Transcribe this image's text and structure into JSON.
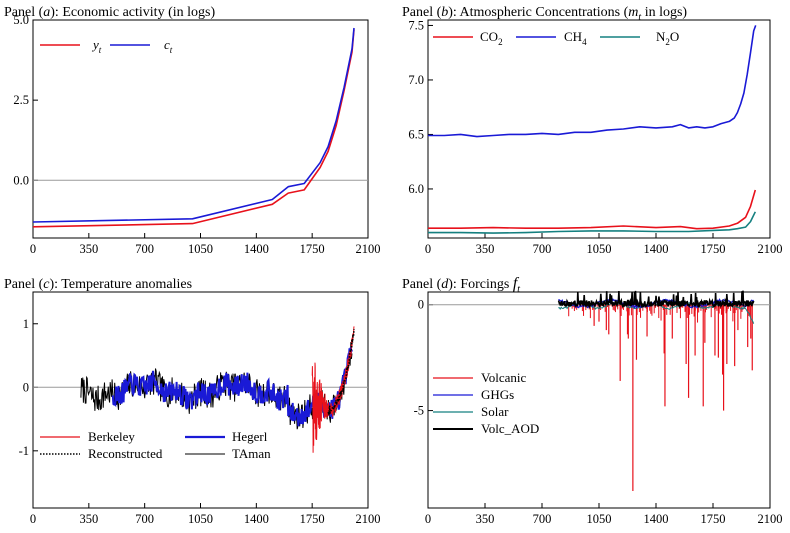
{
  "panels": {
    "a": {
      "prefix": "Panel (",
      "letter": "a",
      "rest": "): Economic activity (in logs)"
    },
    "b": {
      "prefix": "Panel (",
      "letter": "b",
      "rest": "): Atmospheric Concentrations (",
      "m": "m",
      "t": "t",
      "tail": " in logs)"
    },
    "c": {
      "prefix": "Panel (",
      "letter": "c",
      "rest": "): Temperature anomalies"
    },
    "d": {
      "prefix": "Panel (",
      "letter": "d",
      "rest": "): Forcings ",
      "f": "f",
      "t": "t"
    }
  },
  "chart_data": [
    {
      "id": "a",
      "type": "line",
      "title": "Panel (a): Economic activity (in logs)",
      "xlim": [
        0,
        2100
      ],
      "ylim": [
        -1.8,
        5.0
      ],
      "x_ticks": [
        0,
        350,
        700,
        1050,
        1400,
        1750,
        2100
      ],
      "y_ticks": [
        5.0,
        2.5,
        0.0
      ],
      "y_tick_labels": [
        "5.0",
        "2.5",
        "0.0"
      ],
      "reference_line": 0,
      "legend_position": "top-left",
      "series": [
        {
          "name": "y_t",
          "color": "#e8111b",
          "x": [
            0,
            1000,
            1500,
            1600,
            1700,
            1800,
            1850,
            1900,
            1950,
            2000,
            2012
          ],
          "y": [
            -1.45,
            -1.35,
            -0.75,
            -0.4,
            -0.3,
            0.4,
            0.9,
            1.7,
            2.8,
            4.0,
            4.7
          ]
        },
        {
          "name": "c_t",
          "color": "#1a1ad6",
          "x": [
            0,
            1000,
            1500,
            1600,
            1700,
            1800,
            1850,
            1900,
            1950,
            2000,
            2012
          ],
          "y": [
            -1.3,
            -1.2,
            -0.6,
            -0.2,
            -0.1,
            0.55,
            1.05,
            1.85,
            2.9,
            4.1,
            4.75
          ]
        }
      ]
    },
    {
      "id": "b",
      "type": "line",
      "title": "Panel (b): Atmospheric Concentrations (m_t in logs)",
      "xlim": [
        0,
        2100
      ],
      "ylim": [
        5.55,
        7.55
      ],
      "x_ticks": [
        0,
        350,
        700,
        1050,
        1400,
        1750,
        2100
      ],
      "y_ticks": [
        7.5,
        7.0,
        6.5,
        6.0
      ],
      "y_tick_labels": [
        "7.5",
        "7.0",
        "6.5",
        "6.0"
      ],
      "legend_position": "top",
      "series": [
        {
          "name": "CO2",
          "color": "#e8111b",
          "x": [
            0,
            200,
            400,
            600,
            800,
            1000,
            1200,
            1400,
            1550,
            1650,
            1750,
            1850,
            1900,
            1950,
            1980,
            2010
          ],
          "y": [
            5.64,
            5.64,
            5.645,
            5.64,
            5.64,
            5.645,
            5.66,
            5.645,
            5.655,
            5.635,
            5.64,
            5.66,
            5.685,
            5.74,
            5.84,
            5.99
          ]
        },
        {
          "name": "CH4",
          "color": "#1a1ad6",
          "x": [
            0,
            100,
            200,
            300,
            400,
            500,
            600,
            700,
            800,
            900,
            1000,
            1100,
            1200,
            1300,
            1400,
            1500,
            1550,
            1600,
            1650,
            1700,
            1750,
            1800,
            1850,
            1880,
            1900,
            1920,
            1940,
            1960,
            1980,
            2000,
            2012
          ],
          "y": [
            6.49,
            6.49,
            6.5,
            6.48,
            6.49,
            6.5,
            6.5,
            6.51,
            6.5,
            6.52,
            6.52,
            6.54,
            6.55,
            6.57,
            6.56,
            6.57,
            6.59,
            6.56,
            6.57,
            6.56,
            6.57,
            6.6,
            6.62,
            6.65,
            6.7,
            6.78,
            6.88,
            7.05,
            7.25,
            7.45,
            7.5
          ]
        },
        {
          "name": "N2O",
          "color": "#158080",
          "x": [
            0,
            200,
            400,
            600,
            800,
            1000,
            1200,
            1400,
            1600,
            1750,
            1850,
            1900,
            1950,
            1980,
            2010
          ],
          "y": [
            5.6,
            5.6,
            5.595,
            5.6,
            5.61,
            5.615,
            5.615,
            5.61,
            5.61,
            5.62,
            5.625,
            5.635,
            5.65,
            5.7,
            5.79
          ]
        }
      ]
    },
    {
      "id": "c",
      "type": "line",
      "title": "Panel (c): Temperature anomalies",
      "xlim": [
        0,
        2100
      ],
      "ylim": [
        -1.9,
        1.5
      ],
      "x_ticks": [
        0,
        350,
        700,
        1050,
        1400,
        1750,
        2100
      ],
      "y_ticks": [
        1,
        0,
        -1
      ],
      "y_tick_labels": [
        "1",
        "0",
        "-1"
      ],
      "reference_line": 0,
      "legend_position": "bottom",
      "series": [
        {
          "name": "Berkeley",
          "color": "#e8111b",
          "span": [
            1750,
            2013
          ]
        },
        {
          "name": "Hegerl",
          "color": "#1a1ad6",
          "span": [
            500,
            2000
          ]
        },
        {
          "name": "Reconstructed",
          "color": "#000000",
          "style": "dotted",
          "span": [
            1850,
            2013
          ]
        },
        {
          "name": "TAman",
          "color": "#000000",
          "span": [
            300,
            2000
          ]
        }
      ]
    },
    {
      "id": "d",
      "type": "line",
      "title": "Panel (d): Forcings f_t",
      "xlim": [
        0,
        2100
      ],
      "ylim": [
        -9.6,
        0.6
      ],
      "x_ticks": [
        0,
        350,
        700,
        1050,
        1400,
        1750,
        2100
      ],
      "y_ticks": [
        0,
        -5
      ],
      "y_tick_labels": [
        "0",
        "-5"
      ],
      "reference_line": 0,
      "legend_position": "left",
      "series": [
        {
          "name": "Volcanic",
          "color": "#e8111b"
        },
        {
          "name": "GHGs",
          "color": "#1a1ad6"
        },
        {
          "name": "Solar",
          "color": "#158080"
        },
        {
          "name": "Volc_AOD",
          "color": "#000000"
        }
      ],
      "volcanic_spikes": {
        "x": [
          1020,
          1050,
          1095,
          1110,
          1180,
          1225,
          1230,
          1258,
          1280,
          1345,
          1450,
          1455,
          1500,
          1585,
          1600,
          1640,
          1690,
          1700,
          1762,
          1783,
          1809,
          1815,
          1835,
          1883,
          1903,
          1963,
          1982,
          1991
        ],
        "y": [
          -1.0,
          -0.8,
          -1.2,
          -1.4,
          -3.6,
          -1.4,
          -1.6,
          -8.8,
          -2.6,
          -1.5,
          -2.3,
          -4.8,
          -1.6,
          -2.8,
          -4.4,
          -2.4,
          -4.8,
          -1.8,
          -2.4,
          -2.5,
          -3.3,
          -5.0,
          -2.8,
          -2.9,
          -1.2,
          -2.0,
          -1.6,
          -3.1
        ]
      }
    }
  ]
}
